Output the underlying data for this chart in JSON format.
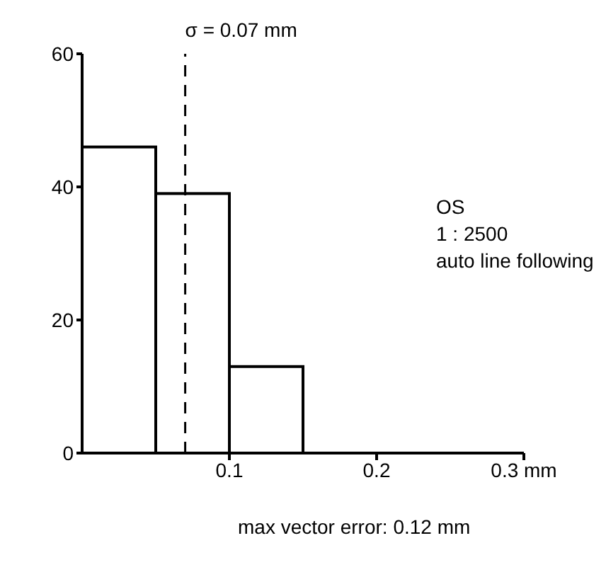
{
  "chart_data": {
    "type": "histogram",
    "bins": [
      0,
      0.05,
      0.1,
      0.15
    ],
    "values": [
      46,
      39,
      13
    ],
    "color": "#000000",
    "xlim": [
      0,
      0.3
    ],
    "xticks": [
      0.1,
      0.2,
      {
        "value": 0.3,
        "label": "0.3 mm"
      }
    ],
    "ylim": [
      0,
      60
    ],
    "yticks": [
      0,
      20,
      40,
      60
    ],
    "ref_lines": [
      {
        "axis": "x",
        "value": 0.07,
        "label": "σ = 0.07 mm",
        "line_style": "dashed",
        "color": "#000000"
      }
    ],
    "annotations": [
      "OS",
      "1 : 2500",
      "auto line following",
      "max vector error: 0.12 mm"
    ]
  }
}
